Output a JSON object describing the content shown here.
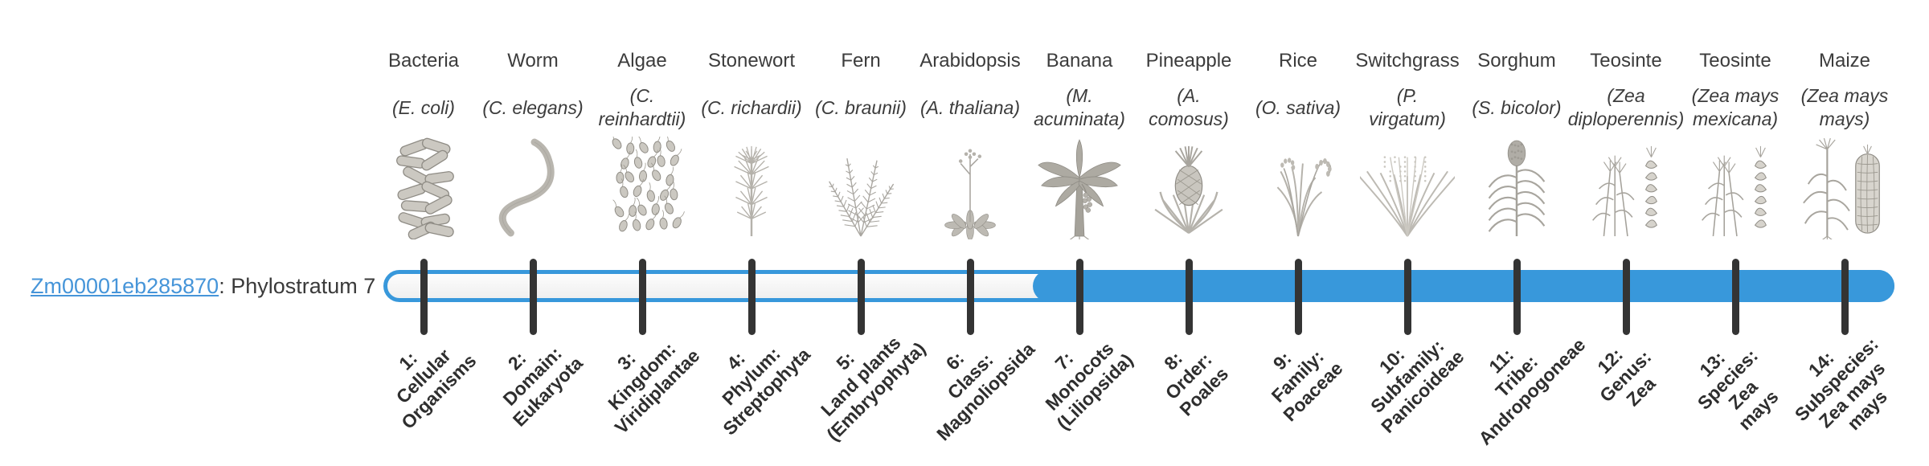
{
  "gene": {
    "id": "Zm00001eb285870",
    "label_suffix": ": Phylostratum 7",
    "phylostratum": 7
  },
  "colors": {
    "bar_blue": "#3898db",
    "tick_dark": "#343434",
    "link_blue": "#4695d9",
    "text_dark": "#3a3a3a"
  },
  "timeline": {
    "total_strata": 14,
    "filled_from_stratum": 7,
    "strata": [
      {
        "n": 1,
        "stage": "1:\nCellular\nOrganisms",
        "name": "Bacteria",
        "sci": "(E. coli)",
        "icon": "bacteria-icon"
      },
      {
        "n": 2,
        "stage": "2:\nDomain:\nEukaryota",
        "name": "Worm",
        "sci": "(C. elegans)",
        "icon": "worm-icon"
      },
      {
        "n": 3,
        "stage": "3:\nKingdom:\nViridiplantae",
        "name": "Algae",
        "sci": "(C.\nreinhardtii)",
        "icon": "algae-icon"
      },
      {
        "n": 4,
        "stage": "4:\nPhylum:\nStreptophyta",
        "name": "Stonewort",
        "sci": "(C. richardii)",
        "icon": "stonewort-icon"
      },
      {
        "n": 5,
        "stage": "5:\nLand plants\n(Embryophyta)",
        "name": "Fern",
        "sci": "(C. braunii)",
        "icon": "fern-icon"
      },
      {
        "n": 6,
        "stage": "6:\nClass:\nMagnoliopsida",
        "name": "Arabidopsis",
        "sci": "(A. thaliana)",
        "icon": "arabidopsis-icon"
      },
      {
        "n": 7,
        "stage": "7:\nMonocots\n(Liliopsida)",
        "name": "Banana",
        "sci": "(M.\nacuminata)",
        "icon": "banana-icon"
      },
      {
        "n": 8,
        "stage": "8:\nOrder:\nPoales",
        "name": "Pineapple",
        "sci": "(A.\ncomosus)",
        "icon": "pineapple-icon"
      },
      {
        "n": 9,
        "stage": "9:\nFamily:\nPoaceae",
        "name": "Rice",
        "sci": "(O. sativa)",
        "icon": "rice-icon"
      },
      {
        "n": 10,
        "stage": "10:\nSubfamily:\nPanicoideae",
        "name": "Switchgrass",
        "sci": "(P.\nvirgatum)",
        "icon": "switchgrass-icon"
      },
      {
        "n": 11,
        "stage": "11:\nTribe:\nAndropogoneae",
        "name": "Sorghum",
        "sci": "(S. bicolor)",
        "icon": "sorghum-icon"
      },
      {
        "n": 12,
        "stage": "12:\nGenus:\nZea",
        "name": "Teosinte",
        "sci": "(Zea\ndiploperennis)",
        "icon": "teosinte-icon"
      },
      {
        "n": 13,
        "stage": "13:\nSpecies:\nZea\nmays",
        "name": "Teosinte",
        "sci": "(Zea mays\nmexicana)",
        "icon": "teosinte-icon"
      },
      {
        "n": 14,
        "stage": "14:\nSubspecies:\nZea mays\nmays",
        "name": "Maize",
        "sci": "(Zea mays\nmays)",
        "icon": "maize-icon"
      }
    ]
  }
}
